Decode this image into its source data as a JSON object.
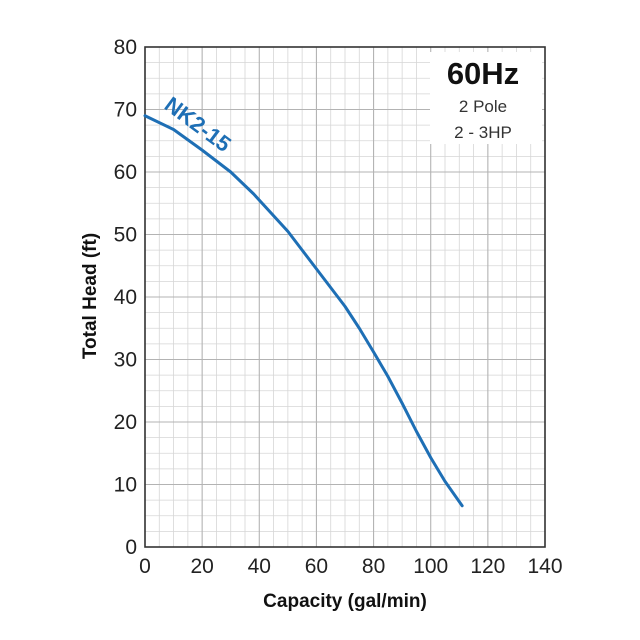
{
  "chart_data": {
    "type": "line",
    "title": "",
    "xlabel": "Capacity (gal/min)",
    "ylabel": "Total Head (ft)",
    "xlim": [
      0,
      140
    ],
    "ylim": [
      0,
      80
    ],
    "x_ticks": [
      0,
      20,
      40,
      60,
      80,
      100,
      120,
      140
    ],
    "y_ticks": [
      0,
      10,
      20,
      30,
      40,
      50,
      60,
      70,
      80
    ],
    "grid": true,
    "legend_box": {
      "title": "60Hz",
      "lines": [
        "2 Pole",
        "2 - 3HP"
      ]
    },
    "series": [
      {
        "name": "NK2-15",
        "color": "#1e6fb5",
        "x": [
          0,
          10,
          20,
          30,
          38,
          45,
          50,
          55,
          60,
          65,
          70,
          75,
          80,
          85,
          90,
          95,
          100,
          105,
          111
        ],
        "y": [
          69,
          66.8,
          63.5,
          60,
          56.5,
          53,
          50.5,
          47.5,
          44.5,
          41.5,
          38.5,
          35,
          31.2,
          27.3,
          23,
          18.5,
          14.3,
          10.5,
          6.6
        ]
      }
    ]
  }
}
